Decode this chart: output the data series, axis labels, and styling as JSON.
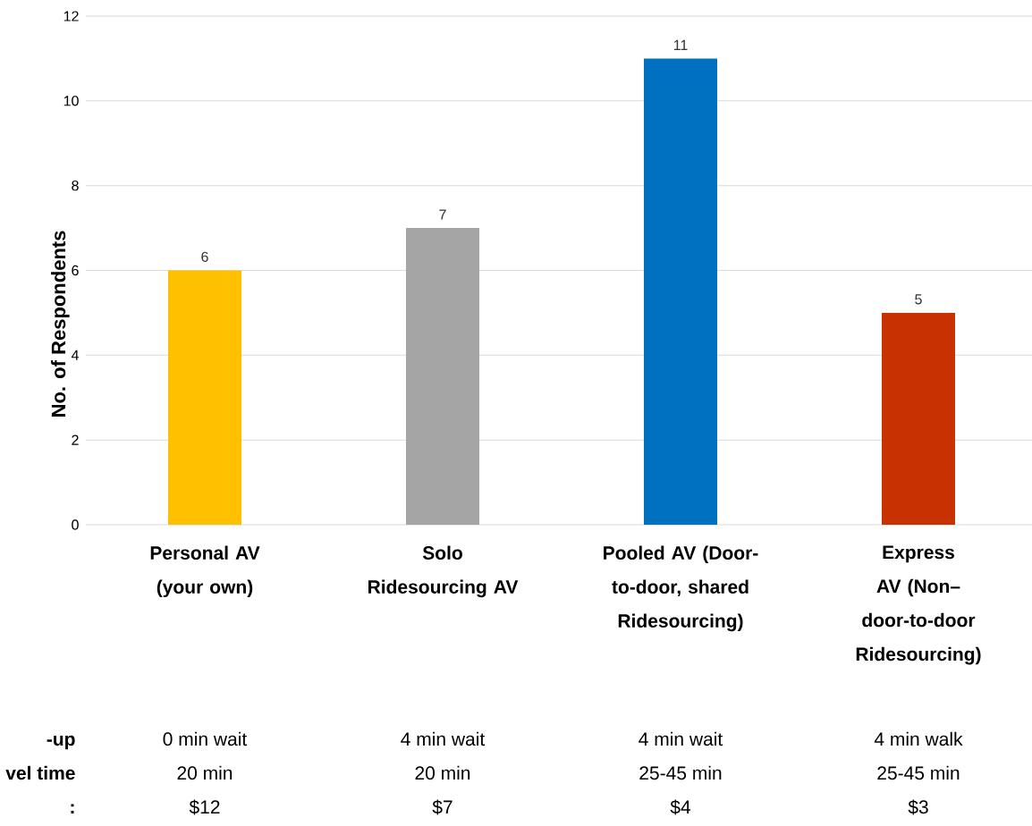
{
  "chart_data": {
    "type": "bar",
    "ylabel": "No. of Respondents",
    "categories": [
      "Personal AV (your own)",
      "Solo Ridesourcing AV",
      "Pooled AV (Door-to-door, shared Ridesourcing)",
      "Express AV (Non–door-to-door Ridesourcing)"
    ],
    "values": [
      6,
      7,
      11,
      5
    ],
    "colors": [
      "#ffc000",
      "#a5a5a5",
      "#0070c0",
      "#c83200"
    ],
    "ylim": [
      0,
      12
    ],
    "yticks": [
      0,
      2,
      4,
      6,
      8,
      10,
      12
    ],
    "grid": "y",
    "data_labels": true,
    "annotations": [
      "-up",
      "vel time",
      ":",
      "0 min wait",
      "4 min wait",
      "4 min wait",
      "4 min walk",
      "20 min",
      "20 min",
      "25-45 min",
      "25-45 min",
      "$12",
      "$7",
      "$4",
      "$3"
    ]
  }
}
